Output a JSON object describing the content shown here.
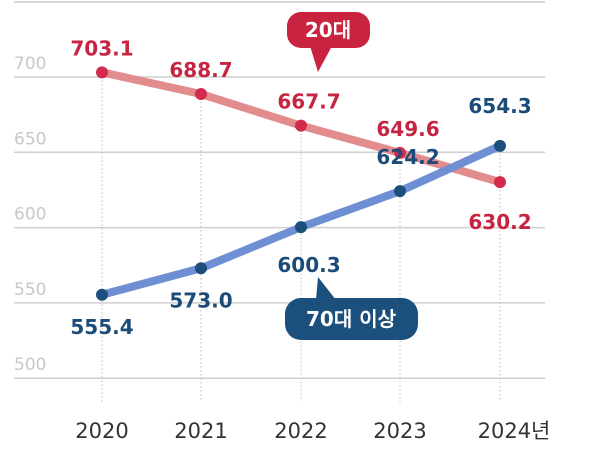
{
  "chart_data": {
    "type": "line",
    "title": "",
    "xlabel": "",
    "ylabel": "",
    "categories": [
      "2020",
      "2021",
      "2022",
      "2023",
      "2024년"
    ],
    "ylim": [
      500,
      700
    ],
    "yticks": [
      "700",
      "650",
      "600",
      "550",
      "500"
    ],
    "ytick_values": [
      700,
      650,
      600,
      550,
      500
    ],
    "grid": true,
    "series": [
      {
        "name": "20대",
        "values": [
          703.1,
          688.7,
          667.7,
          649.6,
          630.2
        ],
        "labels": [
          "703.1",
          "688.7",
          "667.7",
          "649.6",
          "630.2"
        ],
        "line_color": "#e28c8e",
        "dot_color": "#d42a4e",
        "label_color": "#c62440"
      },
      {
        "name": "70대 이상",
        "values": [
          555.4,
          573.0,
          600.3,
          624.2,
          654.3
        ],
        "labels": [
          "555.4",
          "573.0",
          "600.3",
          "624.2",
          "654.3"
        ],
        "line_color": "#6e8fd4",
        "dot_color": "#1d4f7c",
        "label_color": "#1b4c78"
      }
    ]
  }
}
